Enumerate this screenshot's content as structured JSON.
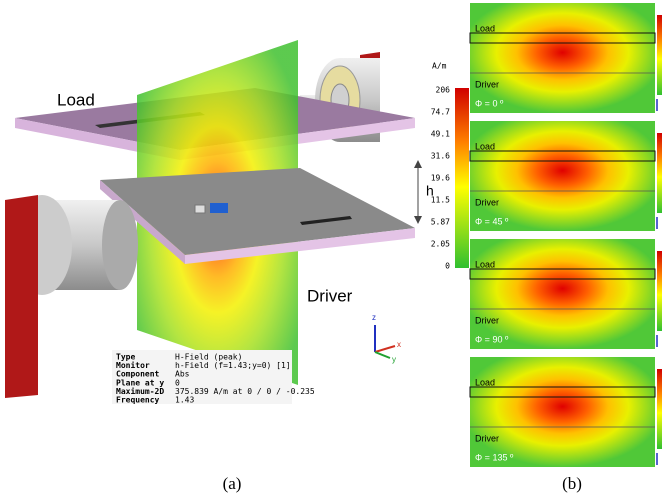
{
  "figure_a": {
    "label_load": "Load",
    "label_driver": "Driver",
    "label_h": "h",
    "colorbar": {
      "unit": "A/m",
      "ticks": [
        "206",
        "74.7",
        "49.1",
        "31.6",
        "19.6",
        "11.5",
        "5.87",
        "2.05",
        "0"
      ]
    },
    "info": {
      "rows": [
        [
          "Type",
          "H-Field (peak)"
        ],
        [
          "Monitor",
          "h-Field (f=1.43;y=0) [1]"
        ],
        [
          "Component",
          "Abs"
        ],
        [
          "Plane at y",
          "0"
        ],
        [
          "Maximum-2D",
          "375.839 A/m at 0 / 0 / -0.235"
        ],
        [
          "Frequency",
          "1.43"
        ]
      ]
    },
    "axes": {
      "z": "z",
      "x": "x",
      "y": "y"
    },
    "caption": "(a)"
  },
  "figure_b": {
    "panels": [
      {
        "load": "Load",
        "driver": "Driver",
        "phase": "Φ = 0 º"
      },
      {
        "load": "Load",
        "driver": "Driver",
        "phase": "Φ = 45 º"
      },
      {
        "load": "Load",
        "driver": "Driver",
        "phase": "Φ = 90 º"
      },
      {
        "load": "Load",
        "driver": "Driver",
        "phase": "Φ = 135 º"
      }
    ],
    "caption": "(b)"
  }
}
